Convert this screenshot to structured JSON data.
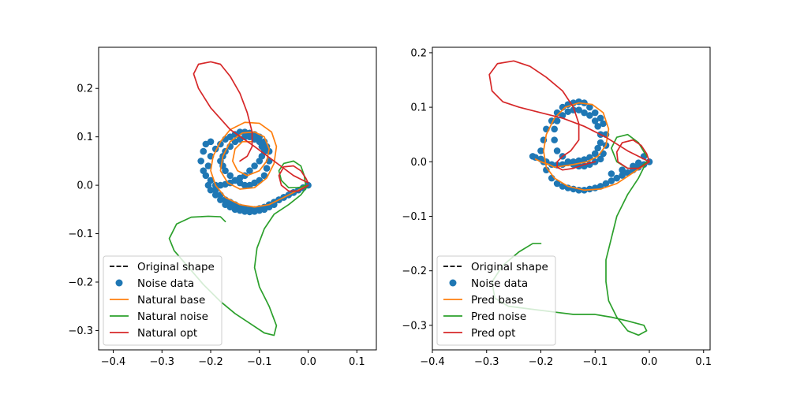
{
  "colors": {
    "original": "#000000",
    "noise": "#1f77b4",
    "base": "#ff7f0e",
    "noise_line": "#2ca02c",
    "opt": "#d62728"
  },
  "chart_data": [
    {
      "type": "line",
      "title": "",
      "xlabel": "",
      "ylabel": "",
      "xlim": [
        -0.43,
        0.14
      ],
      "ylim": [
        -0.34,
        0.285
      ],
      "xticks": [
        -0.4,
        -0.3,
        -0.2,
        -0.1,
        0.0,
        0.1
      ],
      "xtick_labels": [
        "−0.4",
        "−0.3",
        "−0.2",
        "−0.1",
        "0.0",
        "0.1"
      ],
      "yticks": [
        -0.3,
        -0.2,
        -0.1,
        0.0,
        0.1,
        0.2
      ],
      "ytick_labels": [
        "−0.3",
        "−0.2",
        "−0.1",
        "0.0",
        "0.1",
        "0.2"
      ],
      "legend_position": "bottom-left",
      "legend": [
        {
          "label": "Original shape",
          "style": "dashed",
          "color": "#000000"
        },
        {
          "label": "Noise data",
          "style": "marker",
          "color": "#1f77b4"
        },
        {
          "label": "Natural base",
          "style": "line",
          "color": "#ff7f0e"
        },
        {
          "label": "Natural noise",
          "style": "line",
          "color": "#2ca02c"
        },
        {
          "label": "Natural opt",
          "style": "line",
          "color": "#d62728"
        }
      ],
      "series": [
        {
          "name": "Noise data",
          "kind": "scatter",
          "color": "#1f77b4",
          "x": [
            0.0,
            -0.01,
            -0.02,
            -0.03,
            -0.04,
            -0.05,
            -0.06,
            -0.07,
            -0.08,
            -0.09,
            -0.1,
            -0.11,
            -0.12,
            -0.13,
            -0.14,
            -0.15,
            -0.16,
            -0.17,
            -0.18,
            -0.19,
            -0.2,
            -0.205,
            -0.21,
            -0.205,
            -0.2,
            -0.19,
            -0.18,
            -0.17,
            -0.16,
            -0.15,
            -0.14,
            -0.13,
            -0.12,
            -0.11,
            -0.1,
            -0.09,
            -0.085,
            -0.08,
            -0.08,
            -0.085,
            -0.09,
            -0.1,
            -0.11,
            -0.12,
            -0.13,
            -0.14,
            -0.15,
            -0.16,
            -0.17,
            -0.175,
            -0.18,
            -0.175,
            -0.17,
            -0.16,
            -0.15,
            -0.14,
            -0.13,
            -0.12,
            -0.11,
            -0.1,
            -0.095,
            -0.09,
            -0.095,
            -0.1,
            -0.11,
            -0.12,
            -0.13,
            -0.14,
            -0.15,
            -0.16,
            -0.17,
            -0.18,
            -0.19,
            -0.2,
            -0.215,
            -0.22,
            -0.215,
            -0.21,
            -0.2,
            -0.19,
            -0.18,
            -0.17,
            -0.16,
            -0.15,
            -0.14,
            -0.13,
            -0.12,
            -0.11,
            -0.1,
            -0.09,
            -0.08,
            -0.07,
            -0.06,
            -0.05,
            -0.03,
            -0.01
          ],
          "y": [
            0.0,
            -0.005,
            -0.01,
            -0.015,
            -0.02,
            -0.025,
            -0.03,
            -0.04,
            -0.045,
            -0.05,
            -0.052,
            -0.054,
            -0.055,
            -0.054,
            -0.052,
            -0.05,
            -0.045,
            -0.04,
            -0.03,
            -0.02,
            -0.01,
            0.0,
            0.02,
            0.04,
            0.06,
            0.075,
            0.085,
            0.095,
            0.1,
            0.105,
            0.11,
            0.11,
            0.108,
            0.105,
            0.1,
            0.09,
            0.08,
            0.07,
            0.05,
            0.035,
            0.02,
            0.01,
            0.005,
            0.0,
            0.0,
            0.005,
            0.01,
            0.02,
            0.03,
            0.04,
            0.05,
            0.06,
            0.07,
            0.08,
            0.09,
            0.095,
            0.1,
            0.1,
            0.095,
            0.09,
            0.08,
            0.07,
            0.06,
            0.05,
            0.04,
            0.03,
            0.02,
            0.015,
            0.01,
            0.005,
            0.002,
            0.0,
            0.0,
            0.01,
            0.03,
            0.05,
            0.07,
            0.085,
            0.09,
            -0.01,
            -0.02,
            -0.03,
            -0.035,
            -0.04,
            -0.045,
            -0.048,
            -0.05,
            -0.05,
            -0.048,
            -0.045,
            -0.04,
            -0.035,
            -0.03,
            -0.025,
            -0.015,
            -0.005
          ]
        },
        {
          "name": "Natural base",
          "kind": "line",
          "color": "#ff7f0e",
          "x": [
            0.0,
            -0.02,
            -0.05,
            -0.08,
            -0.11,
            -0.14,
            -0.17,
            -0.19,
            -0.2,
            -0.195,
            -0.18,
            -0.16,
            -0.13,
            -0.1,
            -0.075,
            -0.065,
            -0.07,
            -0.085,
            -0.11,
            -0.14,
            -0.165,
            -0.18,
            -0.175,
            -0.16,
            -0.135,
            -0.11,
            -0.09,
            -0.08,
            -0.085,
            -0.1,
            -0.125,
            -0.145,
            -0.155,
            -0.15,
            -0.135,
            -0.115
          ],
          "y": [
            0.0,
            -0.01,
            -0.025,
            -0.04,
            -0.045,
            -0.04,
            -0.025,
            -0.0,
            0.03,
            0.06,
            0.09,
            0.115,
            0.13,
            0.128,
            0.11,
            0.08,
            0.045,
            0.015,
            -0.005,
            -0.008,
            0.005,
            0.03,
            0.06,
            0.09,
            0.108,
            0.11,
            0.1,
            0.075,
            0.05,
            0.03,
            0.02,
            0.03,
            0.05,
            0.075,
            0.09,
            0.09
          ]
        },
        {
          "name": "Natural noise",
          "kind": "line",
          "color": "#2ca02c",
          "x": [
            0.0,
            -0.015,
            -0.04,
            -0.07,
            -0.09,
            -0.105,
            -0.11,
            -0.1,
            -0.08,
            -0.065,
            -0.07,
            -0.09,
            -0.12,
            -0.15,
            -0.18,
            -0.215,
            -0.245,
            -0.275,
            -0.285,
            -0.27,
            -0.24,
            -0.205,
            -0.18,
            -0.17
          ],
          "y": [
            0.0,
            -0.02,
            -0.04,
            -0.06,
            -0.09,
            -0.13,
            -0.17,
            -0.21,
            -0.25,
            -0.29,
            -0.31,
            -0.305,
            -0.285,
            -0.265,
            -0.24,
            -0.205,
            -0.17,
            -0.135,
            -0.11,
            -0.08,
            -0.066,
            -0.064,
            -0.065,
            -0.075
          ]
        },
        {
          "name": "Natural noise loop",
          "kind": "line",
          "color": "#2ca02c",
          "x": [
            -0.005,
            -0.02,
            -0.04,
            -0.055,
            -0.06,
            -0.05,
            -0.03,
            -0.015,
            -0.008,
            -0.005
          ],
          "y": [
            0.0,
            -0.005,
            -0.005,
            0.01,
            0.03,
            0.045,
            0.05,
            0.04,
            0.02,
            0.0
          ]
        },
        {
          "name": "Natural opt",
          "kind": "line",
          "color": "#d62728",
          "x": [
            0.0,
            -0.02,
            -0.04,
            -0.055,
            -0.06,
            -0.05,
            -0.03,
            -0.015,
            -0.005,
            0.0,
            -0.03,
            -0.07,
            -0.11,
            -0.16,
            -0.2,
            -0.225,
            -0.235,
            -0.225,
            -0.2,
            -0.18,
            -0.16,
            -0.14,
            -0.125,
            -0.115,
            -0.115,
            -0.125,
            -0.14
          ],
          "y": [
            0.0,
            -0.012,
            -0.012,
            0.0,
            0.02,
            0.038,
            0.04,
            0.03,
            0.015,
            0.005,
            0.02,
            0.05,
            0.08,
            0.115,
            0.16,
            0.2,
            0.23,
            0.25,
            0.255,
            0.25,
            0.225,
            0.19,
            0.15,
            0.11,
            0.08,
            0.06,
            0.05
          ]
        }
      ]
    },
    {
      "type": "line",
      "title": "",
      "xlabel": "",
      "ylabel": "",
      "xlim": [
        -0.4,
        0.112
      ],
      "ylim": [
        -0.345,
        0.21
      ],
      "xticks": [
        -0.4,
        -0.3,
        -0.2,
        -0.1,
        0.0,
        0.1
      ],
      "xtick_labels": [
        "−0.4",
        "−0.3",
        "−0.2",
        "−0.1",
        "0.0",
        "0.1"
      ],
      "yticks": [
        -0.3,
        -0.2,
        -0.1,
        0.0,
        0.1,
        0.2
      ],
      "ytick_labels": [
        "−0.3",
        "−0.2",
        "−0.1",
        "0.0",
        "0.1",
        "0.2"
      ],
      "legend_position": "bottom-left",
      "legend": [
        {
          "label": "Original shape",
          "style": "dashed",
          "color": "#000000"
        },
        {
          "label": "Noise data",
          "style": "marker",
          "color": "#1f77b4"
        },
        {
          "label": "Pred base",
          "style": "line",
          "color": "#ff7f0e"
        },
        {
          "label": "Pred noise",
          "style": "line",
          "color": "#2ca02c"
        },
        {
          "label": "Pred opt",
          "style": "line",
          "color": "#d62728"
        }
      ],
      "series": [
        {
          "name": "Noise data",
          "kind": "scatter",
          "color": "#1f77b4",
          "x": [
            0.0,
            -0.01,
            -0.02,
            -0.03,
            -0.04,
            -0.05,
            -0.06,
            -0.07,
            -0.08,
            -0.09,
            -0.1,
            -0.11,
            -0.12,
            -0.13,
            -0.14,
            -0.15,
            -0.16,
            -0.17,
            -0.18,
            -0.19,
            -0.195,
            -0.2,
            -0.195,
            -0.19,
            -0.18,
            -0.17,
            -0.16,
            -0.15,
            -0.14,
            -0.13,
            -0.12,
            -0.11,
            -0.1,
            -0.09,
            -0.085,
            -0.08,
            -0.08,
            -0.085,
            -0.09,
            -0.1,
            -0.11,
            -0.12,
            -0.13,
            -0.14,
            -0.15,
            -0.16,
            -0.17,
            -0.175,
            -0.175,
            -0.17,
            -0.16,
            -0.15,
            -0.14,
            -0.13,
            -0.12,
            -0.11,
            -0.1,
            -0.095,
            -0.09,
            -0.09,
            -0.095,
            -0.1,
            -0.11,
            -0.12,
            -0.13,
            -0.14,
            -0.15,
            -0.16,
            -0.17,
            -0.18,
            -0.19,
            -0.2,
            -0.21,
            -0.215,
            -0.01,
            -0.02,
            -0.03,
            -0.05,
            -0.07
          ],
          "y": [
            0.0,
            -0.005,
            -0.01,
            -0.015,
            -0.02,
            -0.025,
            -0.03,
            -0.035,
            -0.04,
            -0.045,
            -0.048,
            -0.05,
            -0.052,
            -0.052,
            -0.05,
            -0.048,
            -0.045,
            -0.04,
            -0.03,
            -0.015,
            0.0,
            0.02,
            0.04,
            0.06,
            0.075,
            0.09,
            0.1,
            0.105,
            0.108,
            0.11,
            0.108,
            0.1,
            0.09,
            0.08,
            0.07,
            0.05,
            0.03,
            0.015,
            0.005,
            0.0,
            -0.005,
            -0.008,
            -0.008,
            -0.005,
            0.0,
            0.01,
            0.02,
            0.04,
            0.06,
            0.075,
            0.085,
            0.092,
            0.095,
            0.095,
            0.09,
            0.085,
            0.075,
            0.065,
            0.05,
            0.035,
            0.025,
            0.015,
            0.008,
            0.004,
            0.002,
            0.0,
            -0.002,
            -0.005,
            -0.006,
            -0.005,
            0.0,
            0.005,
            0.008,
            0.01,
            0.01,
            -0.002,
            -0.008,
            -0.015,
            -0.022
          ]
        },
        {
          "name": "Pred base",
          "kind": "line",
          "color": "#ff7f0e",
          "x": [
            0.0,
            -0.03,
            -0.06,
            -0.09,
            -0.12,
            -0.15,
            -0.175,
            -0.19,
            -0.195,
            -0.19,
            -0.175,
            -0.155,
            -0.13,
            -0.105,
            -0.085,
            -0.075,
            -0.08,
            -0.095,
            -0.115,
            -0.14,
            -0.16,
            -0.175,
            -0.185,
            -0.2,
            -0.21
          ],
          "y": [
            0.0,
            -0.02,
            -0.04,
            -0.05,
            -0.052,
            -0.045,
            -0.03,
            -0.01,
            0.02,
            0.05,
            0.08,
            0.1,
            0.108,
            0.105,
            0.09,
            0.06,
            0.03,
            0.01,
            0.0,
            -0.005,
            -0.008,
            -0.01,
            -0.005,
            0.0,
            0.005
          ]
        },
        {
          "name": "Pred noise",
          "kind": "line",
          "color": "#2ca02c",
          "x": [
            -0.005,
            -0.02,
            -0.04,
            -0.06,
            -0.07,
            -0.08,
            -0.08,
            -0.075,
            -0.06,
            -0.04,
            -0.02,
            -0.005,
            -0.01,
            -0.04,
            -0.07,
            -0.1,
            -0.14,
            -0.18,
            -0.22,
            -0.26,
            -0.285,
            -0.29,
            -0.27,
            -0.24,
            -0.215,
            -0.2
          ],
          "y": [
            0.0,
            -0.03,
            -0.06,
            -0.1,
            -0.14,
            -0.18,
            -0.22,
            -0.255,
            -0.285,
            -0.31,
            -0.318,
            -0.31,
            -0.3,
            -0.292,
            -0.285,
            -0.28,
            -0.28,
            -0.275,
            -0.27,
            -0.265,
            -0.25,
            -0.22,
            -0.19,
            -0.165,
            -0.15,
            -0.15
          ]
        },
        {
          "name": "Pred noise loop",
          "kind": "line",
          "color": "#2ca02c",
          "x": [
            -0.005,
            -0.02,
            -0.04,
            -0.06,
            -0.07,
            -0.06,
            -0.04,
            -0.02,
            -0.005
          ],
          "y": [
            0.0,
            -0.012,
            -0.012,
            0.0,
            0.025,
            0.045,
            0.05,
            0.035,
            0.01
          ]
        },
        {
          "name": "Pred opt",
          "kind": "line",
          "color": "#d62728",
          "x": [
            0.0,
            -0.02,
            -0.04,
            -0.058,
            -0.06,
            -0.05,
            -0.03,
            -0.015,
            -0.005,
            0.0,
            -0.04,
            -0.08,
            -0.12,
            -0.16,
            -0.2,
            -0.24,
            -0.27,
            -0.29,
            -0.295,
            -0.28,
            -0.25,
            -0.22,
            -0.19,
            -0.16,
            -0.14,
            -0.13,
            -0.13,
            -0.145,
            -0.16,
            -0.17,
            -0.17,
            -0.16,
            -0.14,
            -0.12,
            -0.1
          ],
          "y": [
            0.0,
            -0.012,
            -0.012,
            0.0,
            0.018,
            0.035,
            0.04,
            0.03,
            0.015,
            0.0,
            0.02,
            0.045,
            0.065,
            0.08,
            0.09,
            0.1,
            0.11,
            0.13,
            0.16,
            0.18,
            0.185,
            0.175,
            0.155,
            0.13,
            0.1,
            0.07,
            0.04,
            0.02,
            0.01,
            0.0,
            -0.01,
            -0.015,
            -0.012,
            -0.005,
            0.0
          ]
        }
      ]
    }
  ]
}
